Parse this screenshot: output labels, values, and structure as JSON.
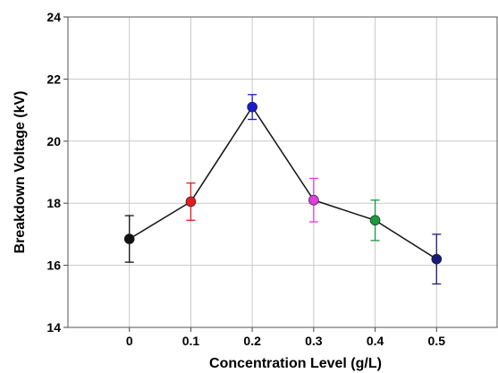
{
  "chart_data": {
    "type": "line",
    "title": "",
    "xlabel": "Concentration Level (g/L)",
    "ylabel": "Breakdown Voltage (kV)",
    "x_tick_labels": [
      "0",
      "0.1",
      "0.2",
      "0.3",
      "0.4",
      "0.5"
    ],
    "y_tick_labels": [
      "14",
      "16",
      "18",
      "20",
      "22",
      "24"
    ],
    "xlim": [
      -0.1,
      0.6
    ],
    "ylim": [
      14,
      24
    ],
    "grid": true,
    "legend": "none",
    "series": [
      {
        "x": [
          0,
          0.1,
          0.2,
          0.3,
          0.4,
          0.5
        ],
        "values": [
          16.85,
          18.05,
          21.1,
          18.1,
          17.45,
          16.2
        ],
        "error_low": [
          16.1,
          17.45,
          20.7,
          17.4,
          16.8,
          15.4
        ],
        "error_high": [
          17.6,
          18.65,
          21.5,
          18.8,
          18.1,
          17.0
        ],
        "point_colors": [
          "#111111",
          "#e31b23",
          "#1c1ccf",
          "#e03ce0",
          "#1a9a3c",
          "#1a1a78"
        ],
        "line_color": "#111111"
      }
    ]
  }
}
